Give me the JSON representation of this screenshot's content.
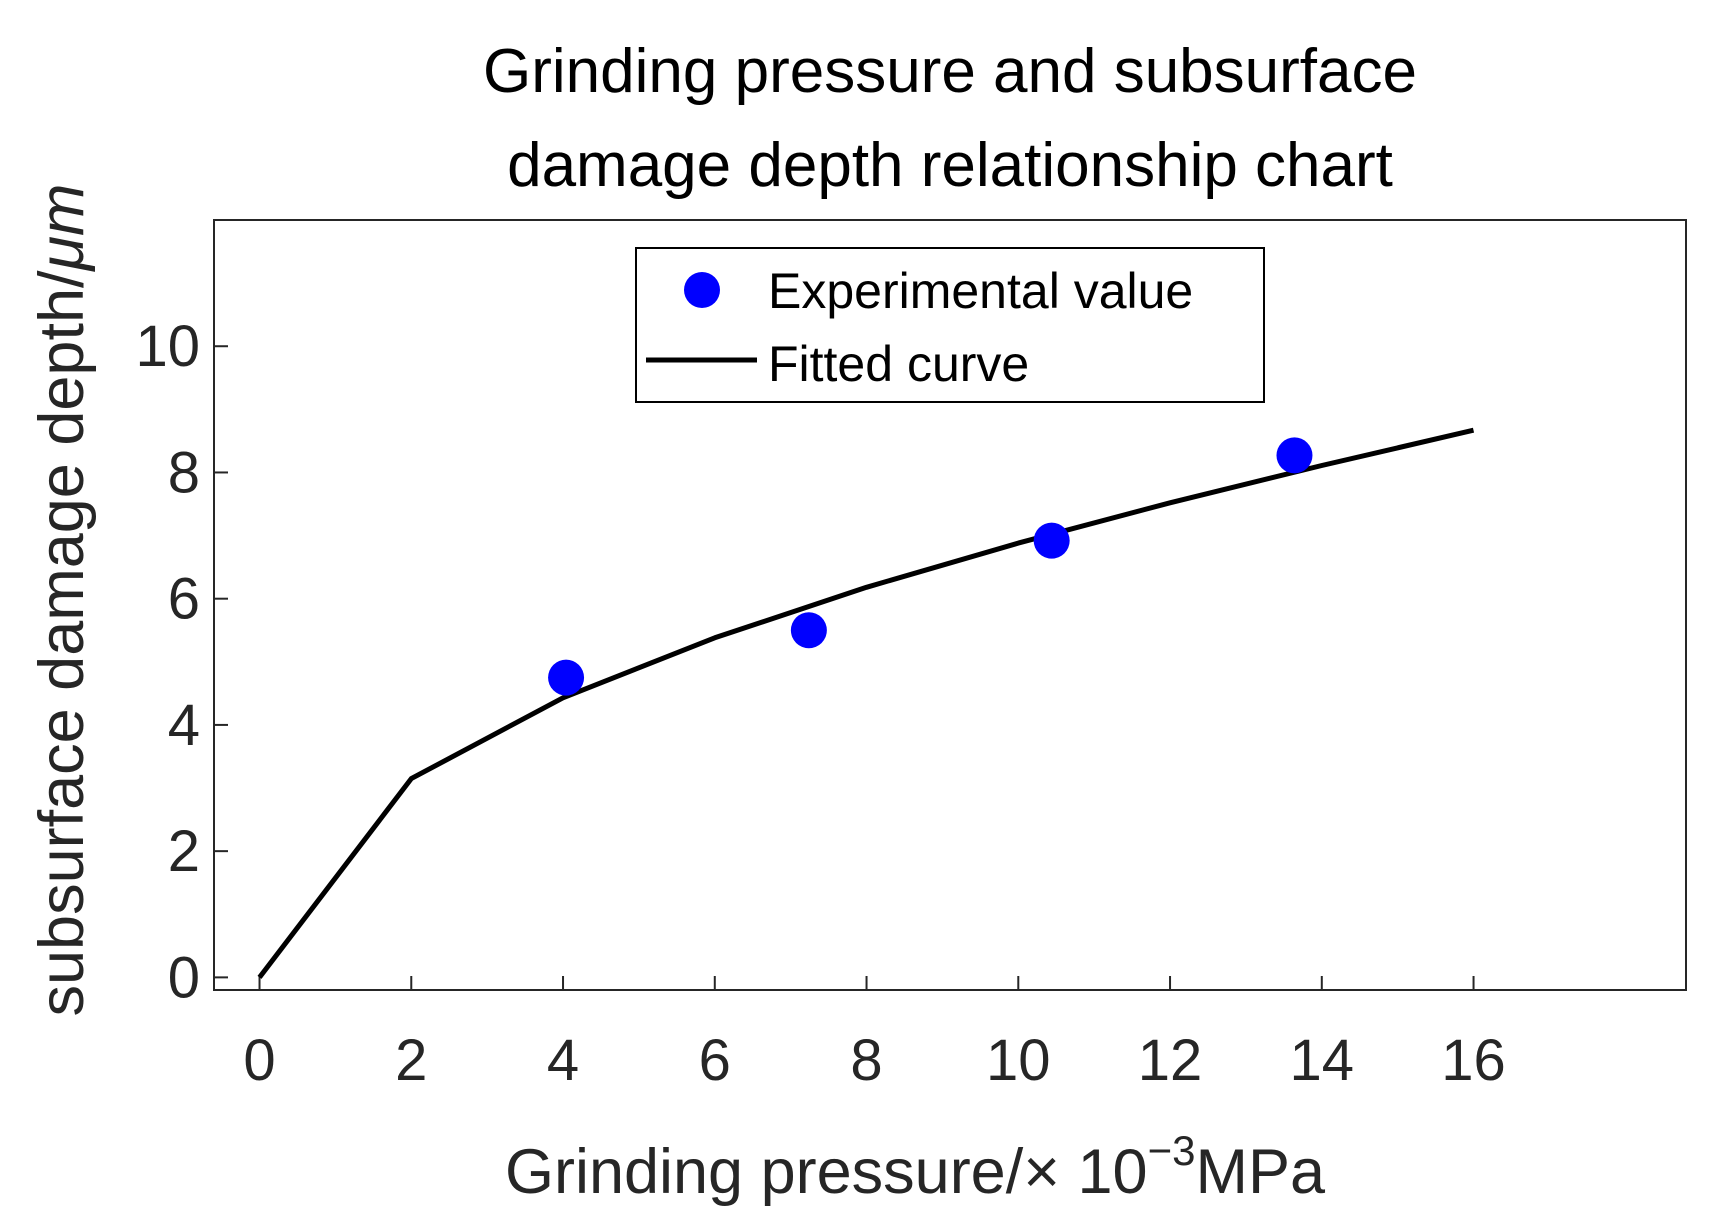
{
  "chart_data": {
    "type": "line",
    "title_lines": [
      "Grinding pressure and subsurface",
      "damage depth relationship chart"
    ],
    "xlabel": {
      "main": "Grinding pressure/× 10",
      "exponent": "−3",
      "unit": "MPa"
    },
    "ylabel": {
      "main": "subsurface damage depth/",
      "unit": "μm"
    },
    "xlim": [
      -0.6,
      18.8
    ],
    "ylim": [
      -0.2,
      12
    ],
    "xticks": [
      0,
      2,
      4,
      6,
      8,
      10,
      12,
      14,
      16
    ],
    "yticks": [
      0,
      2,
      4,
      6,
      8,
      10
    ],
    "grid": false,
    "legend_position": "top-center",
    "series": [
      {
        "name": "Experimental value",
        "kind": "scatter",
        "color": "#0000ff",
        "x": [
          4.04,
          7.24,
          10.44,
          13.64
        ],
        "y": [
          4.75,
          5.5,
          6.92,
          8.27
        ]
      },
      {
        "name": "Fitted curve",
        "kind": "line",
        "color": "#000000",
        "x": [
          0,
          2,
          4,
          6,
          8,
          10,
          12,
          14,
          16
        ],
        "y": [
          0,
          3.15,
          4.43,
          5.38,
          6.18,
          6.88,
          7.52,
          8.11,
          8.67
        ]
      }
    ]
  }
}
